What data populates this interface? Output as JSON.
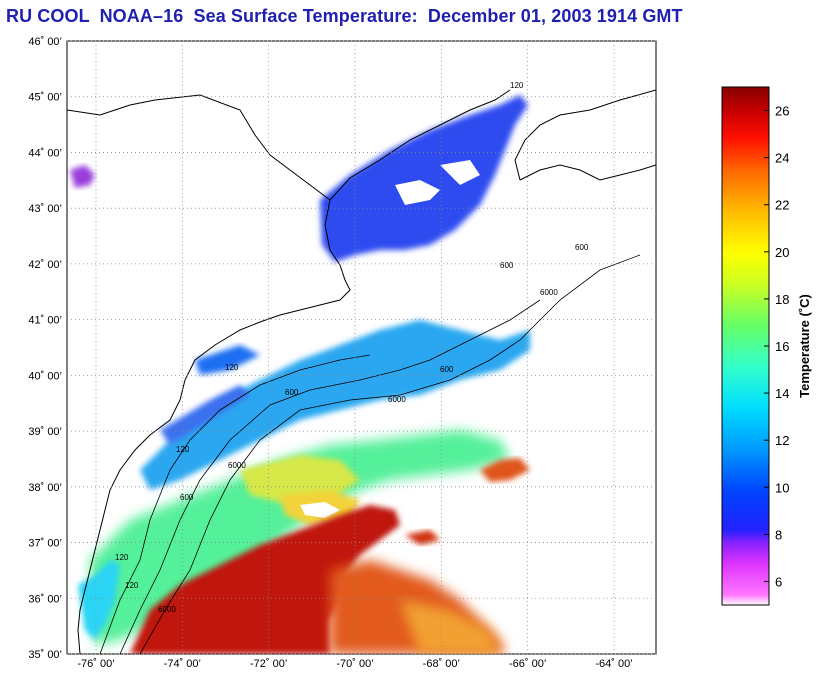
{
  "title": "RU COOL  NOAA–16  Sea Surface Temperature:  December 01, 2003 1914 GMT",
  "map": {
    "lon_range": [
      -77,
      -63
    ],
    "lat_range": [
      35,
      46
    ],
    "lat_ticks": [
      {
        "value": 46,
        "label": "46˚ 00’"
      },
      {
        "value": 45,
        "label": "45˚ 00’"
      },
      {
        "value": 44,
        "label": "44˚ 00’"
      },
      {
        "value": 43,
        "label": "43˚ 00’"
      },
      {
        "value": 42,
        "label": "42˚ 00’"
      },
      {
        "value": 41,
        "label": "41˚ 00’"
      },
      {
        "value": 40,
        "label": "40˚ 00’"
      },
      {
        "value": 39,
        "label": "39˚ 00’"
      },
      {
        "value": 38,
        "label": "38˚ 00’"
      },
      {
        "value": 37,
        "label": "37˚ 00’"
      },
      {
        "value": 36,
        "label": "36˚ 00’"
      },
      {
        "value": 35,
        "label": "35˚ 00’"
      }
    ],
    "lon_ticks": [
      {
        "value": -76,
        "label": "-76˚ 00’"
      },
      {
        "value": -74,
        "label": "-74˚ 00’"
      },
      {
        "value": -72,
        "label": "-72˚ 00’"
      },
      {
        "value": -70,
        "label": "-70˚ 00’"
      },
      {
        "value": -68,
        "label": "-68˚ 00’"
      },
      {
        "value": -66,
        "label": "-66˚ 00’"
      },
      {
        "value": -64,
        "label": "-64˚ 00’"
      }
    ],
    "contour_labels": [
      "120",
      "600",
      "6000"
    ]
  },
  "colorbar": {
    "title": "Temperature (˚C)",
    "range": [
      5,
      27
    ],
    "ticks": [
      {
        "value": 6,
        "label": "6"
      },
      {
        "value": 8,
        "label": "8"
      },
      {
        "value": 10,
        "label": "10"
      },
      {
        "value": 12,
        "label": "12"
      },
      {
        "value": 14,
        "label": "14"
      },
      {
        "value": 16,
        "label": "16"
      },
      {
        "value": 18,
        "label": "18"
      },
      {
        "value": 20,
        "label": "20"
      },
      {
        "value": 22,
        "label": "22"
      },
      {
        "value": 24,
        "label": "24"
      },
      {
        "value": 26,
        "label": "26"
      }
    ],
    "colors": [
      "#ff66ff",
      "#cc33ff",
      "#3333ff",
      "#0055ff",
      "#00ccff",
      "#33ffcc",
      "#66ff66",
      "#ccff33",
      "#ffff00",
      "#ffaa00",
      "#ff5500",
      "#ff0000",
      "#990000"
    ]
  }
}
